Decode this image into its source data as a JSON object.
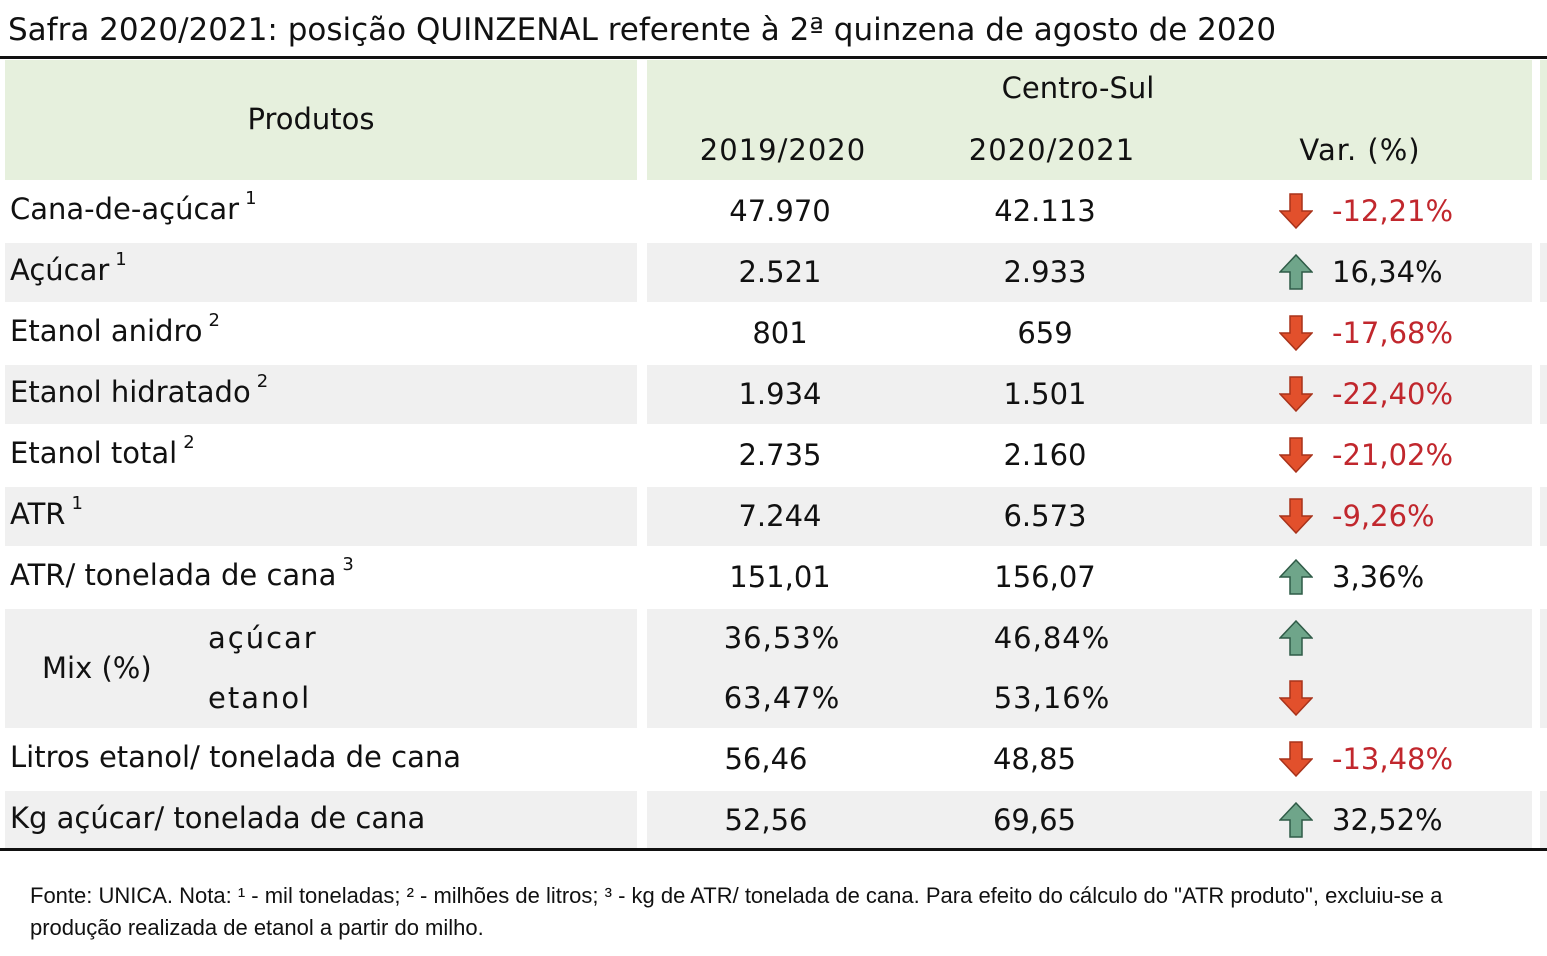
{
  "title": "Safra 2020/2021: posição QUINZENAL referente à 2ª quinzena de agosto de 2020",
  "table": {
    "header": {
      "products": "Produtos",
      "region": "Centro-Sul",
      "columns": [
        "2019/2020",
        "2020/2021",
        "Var. (%)"
      ]
    },
    "rows": [
      {
        "label": "Cana-de-açúcar",
        "note": "1",
        "values": [
          "47.970",
          "42.113"
        ],
        "arrow": "down",
        "var": "-12,21%"
      },
      {
        "label": "Açúcar",
        "note": "1",
        "values": [
          "2.521",
          "2.933"
        ],
        "arrow": "up",
        "var": "16,34%"
      },
      {
        "label": "Etanol anidro",
        "note": "2",
        "values": [
          "801",
          "659"
        ],
        "arrow": "down",
        "var": "-17,68%"
      },
      {
        "label": "Etanol hidratado",
        "note": "2",
        "values": [
          "1.934",
          "1.501"
        ],
        "arrow": "down",
        "var": "-22,40%"
      },
      {
        "label": "Etanol total",
        "note": "2",
        "values": [
          "2.735",
          "2.160"
        ],
        "arrow": "down",
        "var": "-21,02%"
      },
      {
        "label": "ATR",
        "note": "1",
        "values": [
          "7.244",
          "6.573"
        ],
        "arrow": "down",
        "var": "-9,26%"
      },
      {
        "label": "ATR/ tonelada de cana",
        "note": "3",
        "values": [
          "151,01",
          "156,07"
        ],
        "arrow": "up",
        "var": "3,36%"
      }
    ],
    "mix": {
      "label": "Mix (%)",
      "rows": [
        {
          "label": "açúcar",
          "values": [
            "36,53%",
            "46,84%"
          ],
          "arrow": "up"
        },
        {
          "label": "etanol",
          "values": [
            "63,47%",
            "53,16%"
          ],
          "arrow": "down"
        }
      ]
    },
    "more_rows": [
      {
        "label": "Litros etanol/ tonelada de cana",
        "values": [
          "56,46",
          "48,85"
        ],
        "arrow": "down",
        "var": "-13,48%"
      },
      {
        "label": "Kg açúcar/ tonelada de cana",
        "values": [
          "52,56",
          "69,65"
        ],
        "arrow": "up",
        "var": "32,52%"
      }
    ]
  },
  "footnote": "Fonte: UNICA. Nota: ¹ - mil toneladas; ² - milhões de litros; ³ - kg de ATR/ tonelada de cana. Para efeito do cálculo do \"ATR produto\", excluiu-se a produção realizada de etanol a partir do milho."
}
